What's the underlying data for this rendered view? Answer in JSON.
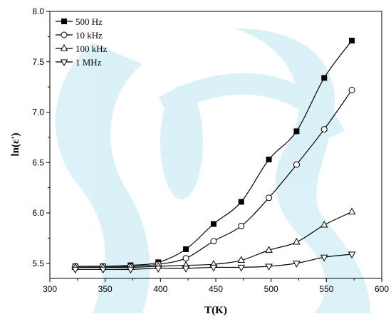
{
  "chart_data": {
    "type": "line",
    "xlabel": "T(K)",
    "ylabel": "ln(ε')",
    "xlim": [
      300,
      600
    ],
    "ylim": [
      5.35,
      8.0
    ],
    "x_ticks": [
      300,
      350,
      400,
      450,
      500,
      550,
      600
    ],
    "y_ticks": [
      5.5,
      6.0,
      6.5,
      7.0,
      7.5,
      8.0
    ],
    "y_tick_labels": [
      "5.5",
      "6.0",
      "6.5",
      "7.0",
      "7.5",
      "8.0"
    ],
    "grid": false,
    "legend_position": "top-left",
    "x": [
      323,
      348,
      373,
      398,
      423,
      448,
      473,
      498,
      523,
      548,
      573
    ],
    "series": [
      {
        "name": "500 Hz",
        "marker": "square-filled",
        "values": [
          5.47,
          5.47,
          5.48,
          5.51,
          5.64,
          5.89,
          6.11,
          6.53,
          6.81,
          7.34,
          7.71
        ]
      },
      {
        "name": "10 kHz",
        "marker": "circle-open",
        "values": [
          5.47,
          5.47,
          5.47,
          5.49,
          5.55,
          5.72,
          5.87,
          6.15,
          6.48,
          6.83,
          7.22
        ]
      },
      {
        "name": "100 kHz",
        "marker": "triangle-up-open",
        "values": [
          5.46,
          5.46,
          5.46,
          5.47,
          5.48,
          5.49,
          5.53,
          5.63,
          5.71,
          5.88,
          6.01
        ]
      },
      {
        "name": "1 MHz",
        "marker": "triangle-down-open",
        "values": [
          5.44,
          5.44,
          5.44,
          5.45,
          5.45,
          5.46,
          5.46,
          5.47,
          5.5,
          5.56,
          5.59
        ]
      }
    ]
  }
}
